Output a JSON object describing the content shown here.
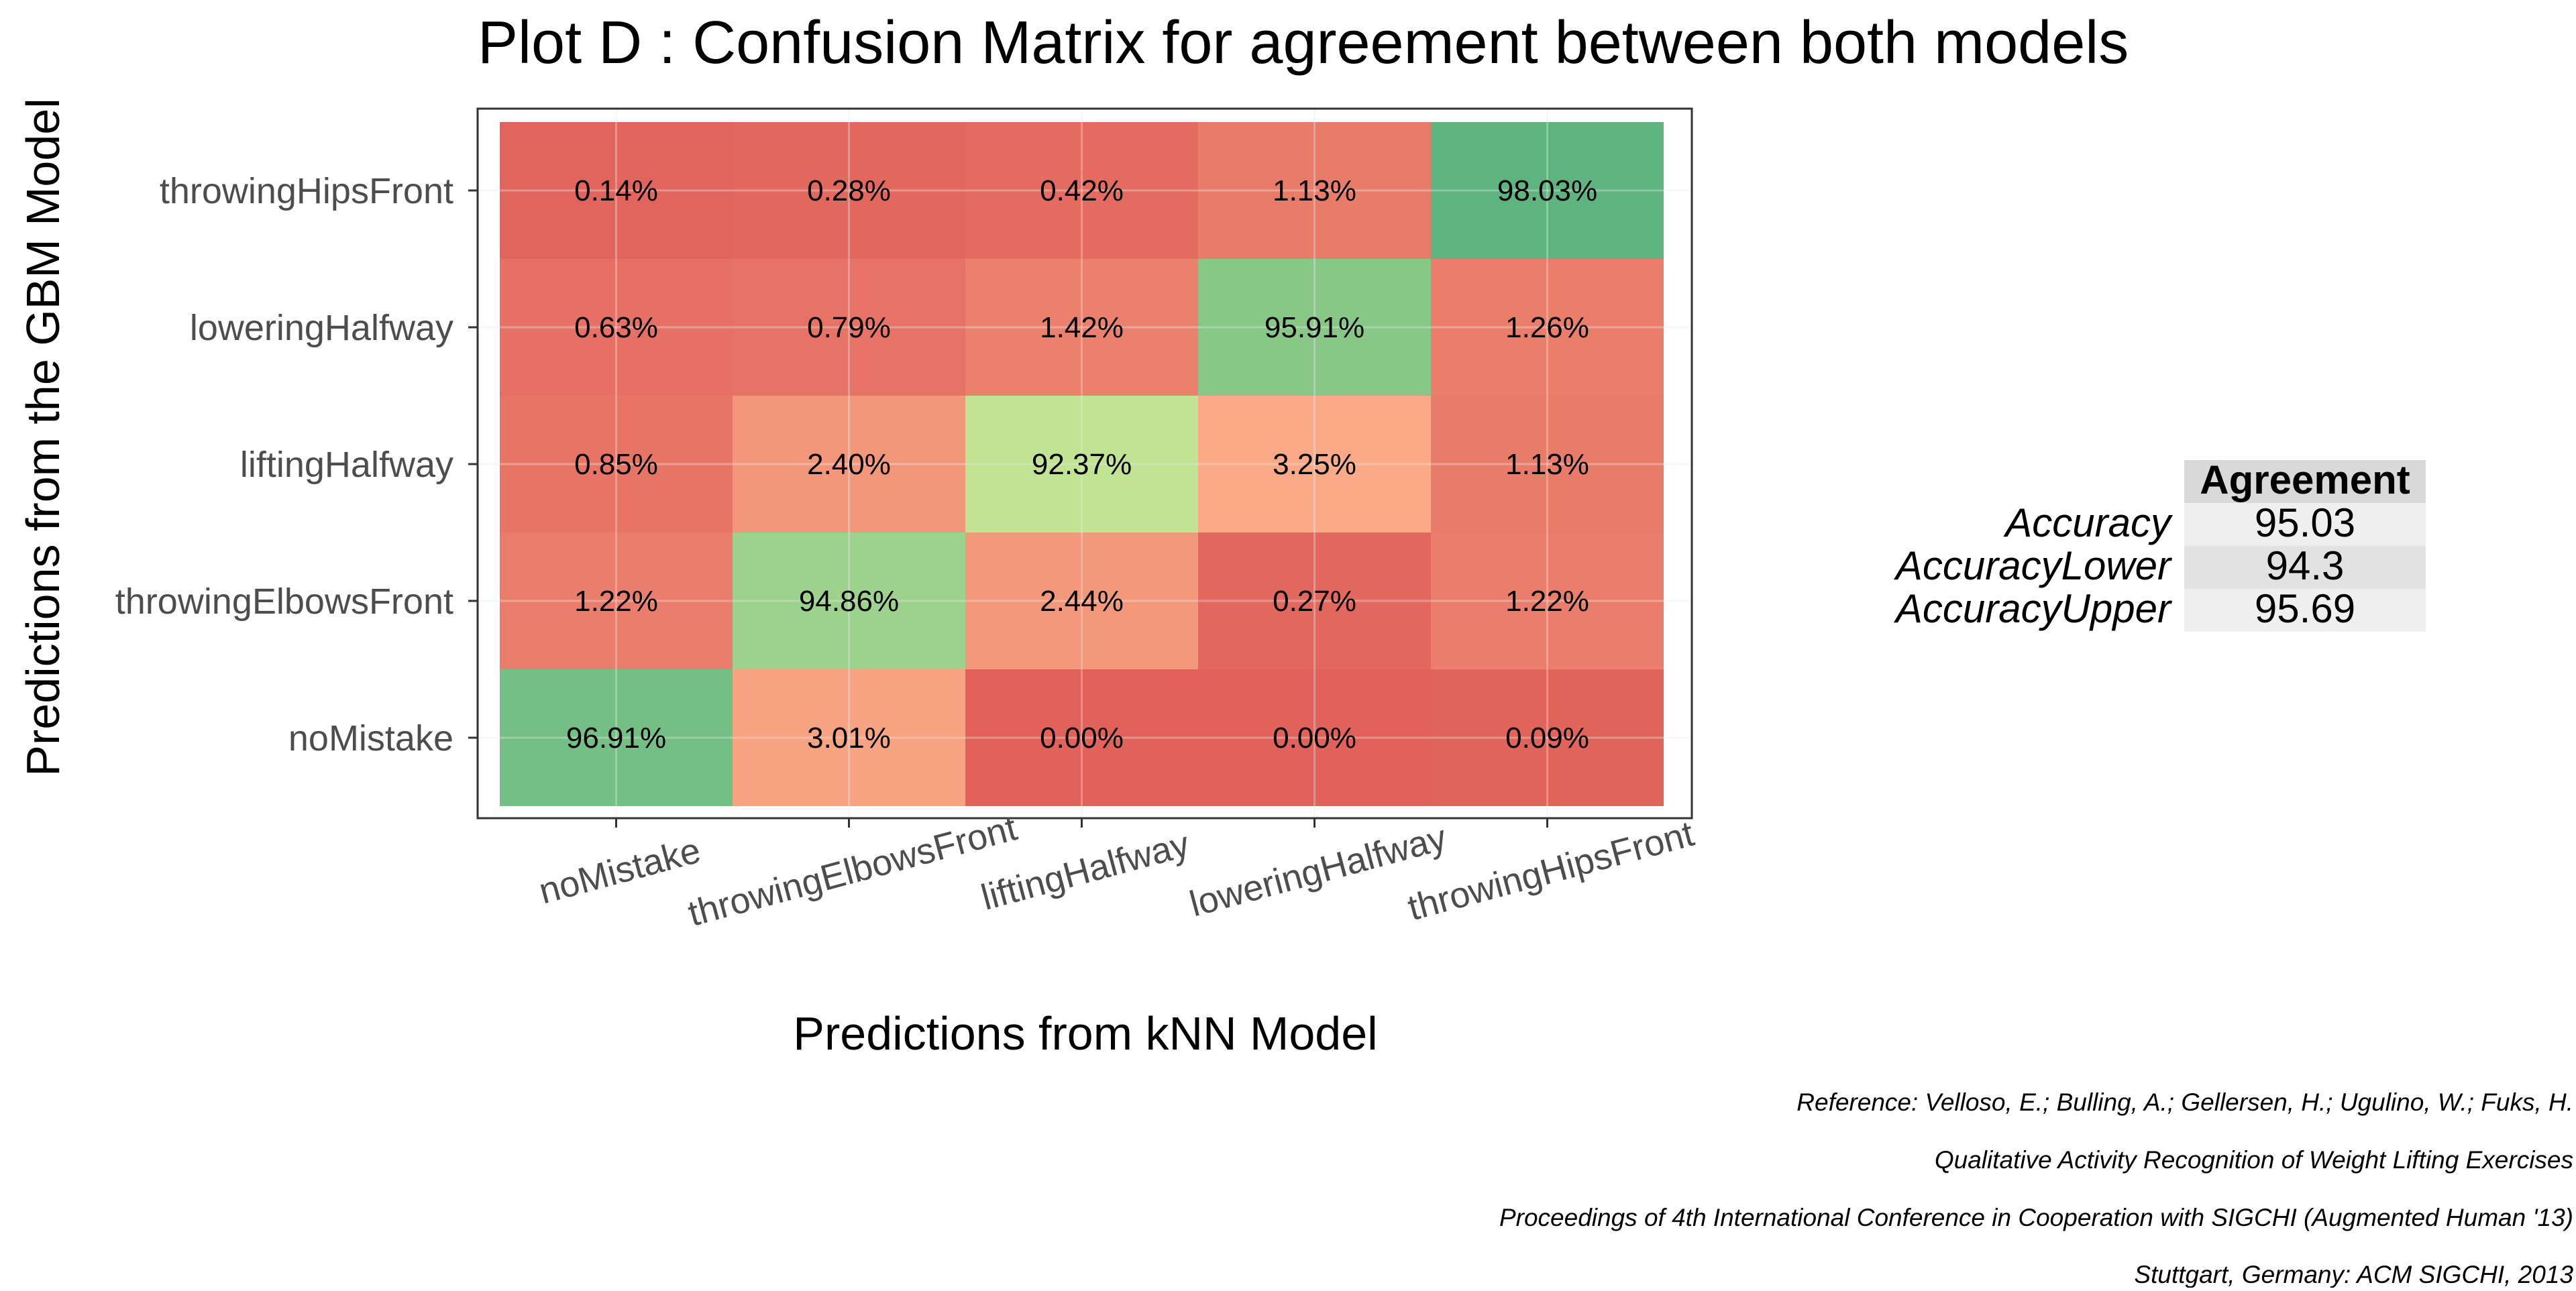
{
  "chart_data": {
    "type": "heatmap",
    "title": "Plot D : Confusion Matrix for agreement between both models",
    "xlabel": "Predictions from kNN Model",
    "ylabel": "Predictions from the GBM Model",
    "x_categories": [
      "noMistake",
      "throwingElbowsFront",
      "liftingHalfway",
      "loweringHalfway",
      "throwingHipsFront"
    ],
    "y_categories_bottom_to_top": [
      "noMistake",
      "throwingElbowsFront",
      "liftingHalfway",
      "loweringHalfway",
      "throwingHipsFront"
    ],
    "grid": true,
    "cells": [
      {
        "y": "throwingHipsFront",
        "x": "noMistake",
        "value": 0.14,
        "label": "0.14%"
      },
      {
        "y": "throwingHipsFront",
        "x": "throwingElbowsFront",
        "value": 0.28,
        "label": "0.28%"
      },
      {
        "y": "throwingHipsFront",
        "x": "liftingHalfway",
        "value": 0.42,
        "label": "0.42%"
      },
      {
        "y": "throwingHipsFront",
        "x": "loweringHalfway",
        "value": 1.13,
        "label": "1.13%"
      },
      {
        "y": "throwingHipsFront",
        "x": "throwingHipsFront",
        "value": 98.03,
        "label": "98.03%"
      },
      {
        "y": "loweringHalfway",
        "x": "noMistake",
        "value": 0.63,
        "label": "0.63%"
      },
      {
        "y": "loweringHalfway",
        "x": "throwingElbowsFront",
        "value": 0.79,
        "label": "0.79%"
      },
      {
        "y": "loweringHalfway",
        "x": "liftingHalfway",
        "value": 1.42,
        "label": "1.42%"
      },
      {
        "y": "loweringHalfway",
        "x": "loweringHalfway",
        "value": 95.91,
        "label": "95.91%"
      },
      {
        "y": "loweringHalfway",
        "x": "throwingHipsFront",
        "value": 1.26,
        "label": "1.26%"
      },
      {
        "y": "liftingHalfway",
        "x": "noMistake",
        "value": 0.85,
        "label": "0.85%"
      },
      {
        "y": "liftingHalfway",
        "x": "throwingElbowsFront",
        "value": 2.4,
        "label": "2.40%"
      },
      {
        "y": "liftingHalfway",
        "x": "liftingHalfway",
        "value": 92.37,
        "label": "92.37%"
      },
      {
        "y": "liftingHalfway",
        "x": "loweringHalfway",
        "value": 3.25,
        "label": "3.25%"
      },
      {
        "y": "liftingHalfway",
        "x": "throwingHipsFront",
        "value": 1.13,
        "label": "1.13%"
      },
      {
        "y": "throwingElbowsFront",
        "x": "noMistake",
        "value": 1.22,
        "label": "1.22%"
      },
      {
        "y": "throwingElbowsFront",
        "x": "throwingElbowsFront",
        "value": 94.86,
        "label": "94.86%"
      },
      {
        "y": "throwingElbowsFront",
        "x": "liftingHalfway",
        "value": 2.44,
        "label": "2.44%"
      },
      {
        "y": "throwingElbowsFront",
        "x": "loweringHalfway",
        "value": 0.27,
        "label": "0.27%"
      },
      {
        "y": "throwingElbowsFront",
        "x": "throwingHipsFront",
        "value": 1.22,
        "label": "1.22%"
      },
      {
        "y": "noMistake",
        "x": "noMistake",
        "value": 96.91,
        "label": "96.91%"
      },
      {
        "y": "noMistake",
        "x": "throwingElbowsFront",
        "value": 3.01,
        "label": "3.01%"
      },
      {
        "y": "noMistake",
        "x": "liftingHalfway",
        "value": 0.0,
        "label": "0.00%"
      },
      {
        "y": "noMistake",
        "x": "loweringHalfway",
        "value": 0.0,
        "label": "0.00%"
      },
      {
        "y": "noMistake",
        "x": "throwingHipsFront",
        "value": 0.09,
        "label": "0.09%"
      }
    ],
    "agreement_table": {
      "header": "Agreement",
      "rows": [
        {
          "label": "Accuracy",
          "value": "95.03"
        },
        {
          "label": "AccuracyLower",
          "value": "94.3"
        },
        {
          "label": "AccuracyUpper",
          "value": "95.69"
        }
      ]
    },
    "reference_lines": [
      "Reference: Velloso, E.; Bulling, A.; Gellersen, H.; Ugulino, W.; Fuks, H.",
      "Qualitative Activity Recognition of Weight Lifting Exercises",
      "Proceedings of 4th International Conference in Cooperation with SIGCHI (Augmented Human '13)",
      "Stuttgart, Germany: ACM SIGCHI, 2013"
    ],
    "colors": {
      "low": "#e0625a",
      "mid": "#fcaf8a",
      "peak": "#c1e394",
      "high": "#55b07c",
      "panel_border": "#333333",
      "grid": "#ebebeb",
      "table_header_bg": "#d9d9d9",
      "table_row_light": "#efefef",
      "table_row_dark": "#e2e2e2"
    }
  }
}
